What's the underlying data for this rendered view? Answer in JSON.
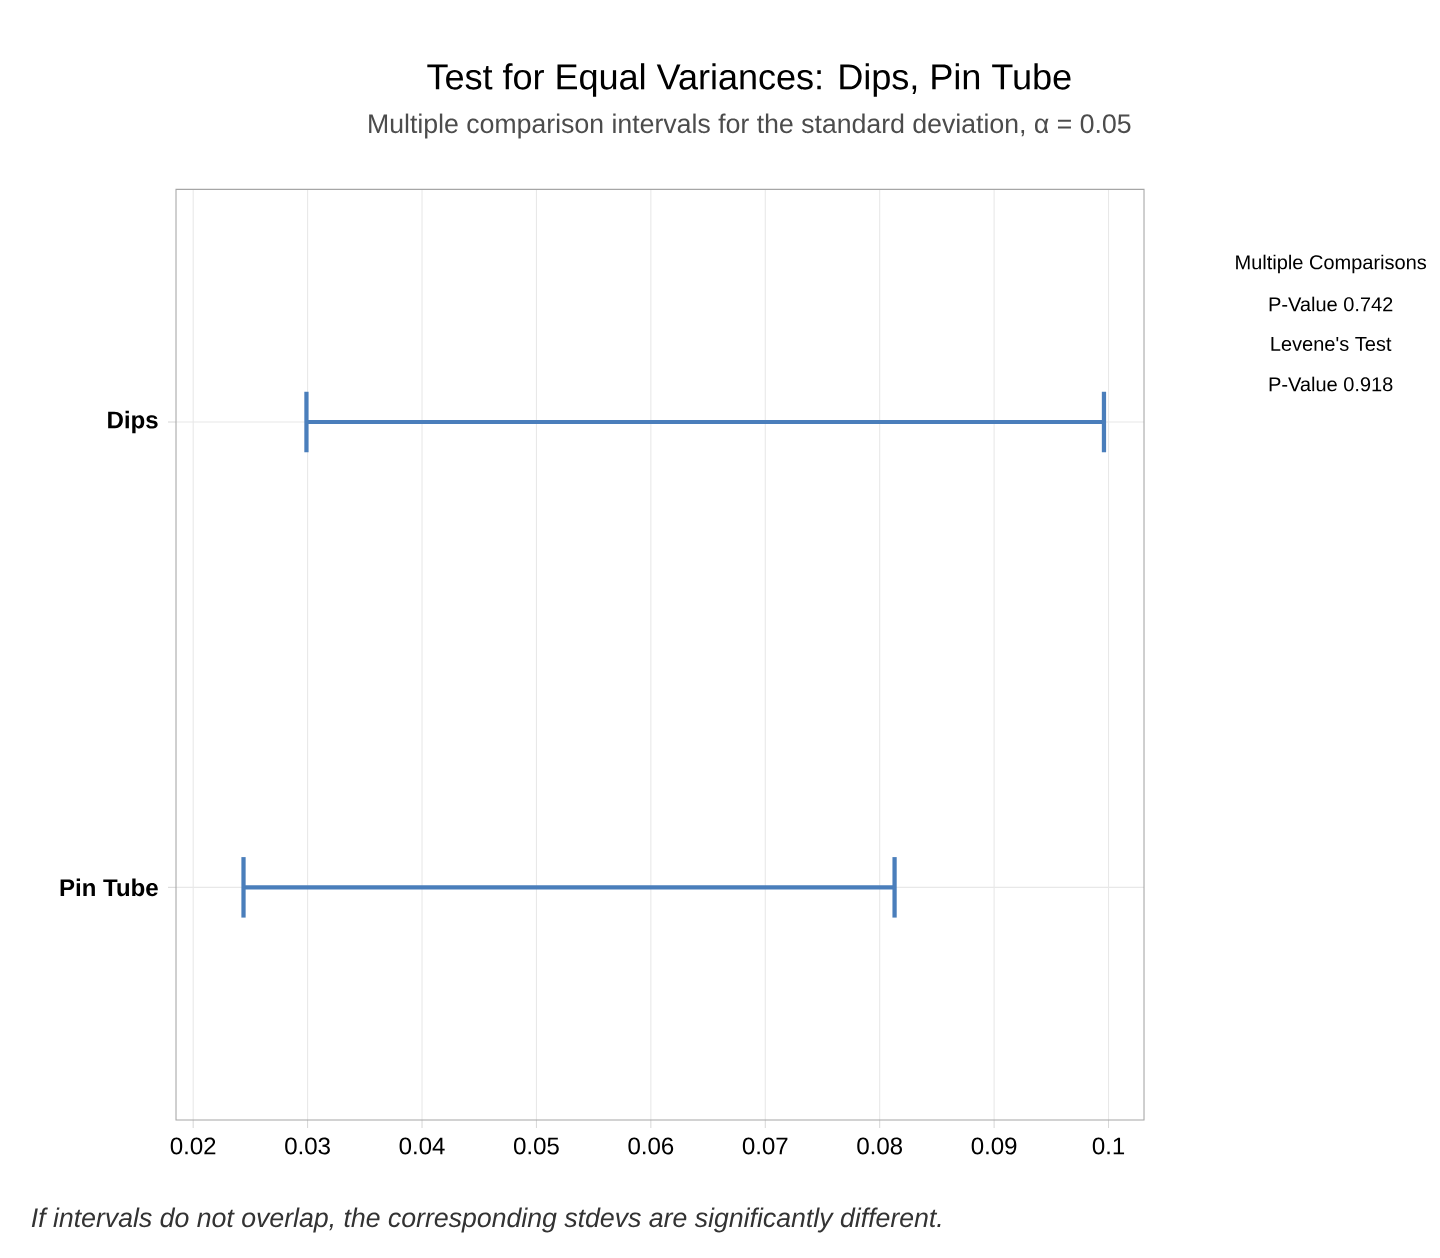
{
  "chart_data": {
    "type": "bar",
    "orientation": "horizontal",
    "title": "Test for Equal Variances: Dips, Pin Tube",
    "subtitle": "Multiple comparison intervals for the standard deviation, α = 0.05",
    "categories": [
      "Dips",
      "Pin Tube"
    ],
    "base": [
      0.0299,
      0.0244
    ],
    "values": [
      0.0697,
      0.0569
    ],
    "color": "#4a7ebb",
    "xlim": [
      0.0185,
      0.1031
    ],
    "xticks": [
      0.02,
      0.03,
      0.04,
      0.05,
      0.06,
      0.07,
      0.08,
      0.09,
      0.1
    ],
    "grid": true,
    "annotations": [
      "If intervals do not overlap, the corresponding stdevs are significantly different.",
      "Multiple Comparisons",
      "P-Value    0.742",
      "Levene's Test",
      "P-Value    0.918"
    ]
  }
}
